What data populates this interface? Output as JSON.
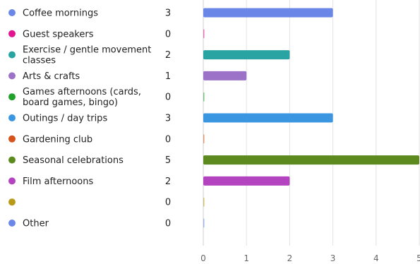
{
  "chart_data": {
    "type": "bar",
    "orientation": "horizontal",
    "categories": [
      [
        "Coffee mornings"
      ],
      [
        "Guest speakers"
      ],
      [
        "Exercise / gentle movement",
        "classes"
      ],
      [
        "Arts & crafts"
      ],
      [
        "Games afternoons (cards,",
        "board games, bingo)"
      ],
      [
        "Outings / day trips"
      ],
      [
        "Gardening club"
      ],
      [
        "Seasonal celebrations"
      ],
      [
        "Film afternoons"
      ],
      [
        ""
      ],
      [
        "Other"
      ]
    ],
    "values": [
      3,
      0,
      2,
      1,
      0,
      3,
      0,
      5,
      2,
      0,
      0
    ],
    "counts": [
      "3",
      "0",
      "2",
      "1",
      "0",
      "3",
      "0",
      "5",
      "2",
      "0",
      "0"
    ],
    "colors": [
      "#6a87e8",
      "#e0158f",
      "#2aa3a3",
      "#9b72c8",
      "#1fa12c",
      "#3a96e0",
      "#d6531c",
      "#5c8a1f",
      "#b443c0",
      "#b89a18",
      "#6a87e8"
    ],
    "xlim": [
      0,
      5
    ],
    "xticks": [
      "0",
      "1",
      "2",
      "3",
      "4",
      "5"
    ],
    "grid": true,
    "legend": "left, dot per row"
  }
}
